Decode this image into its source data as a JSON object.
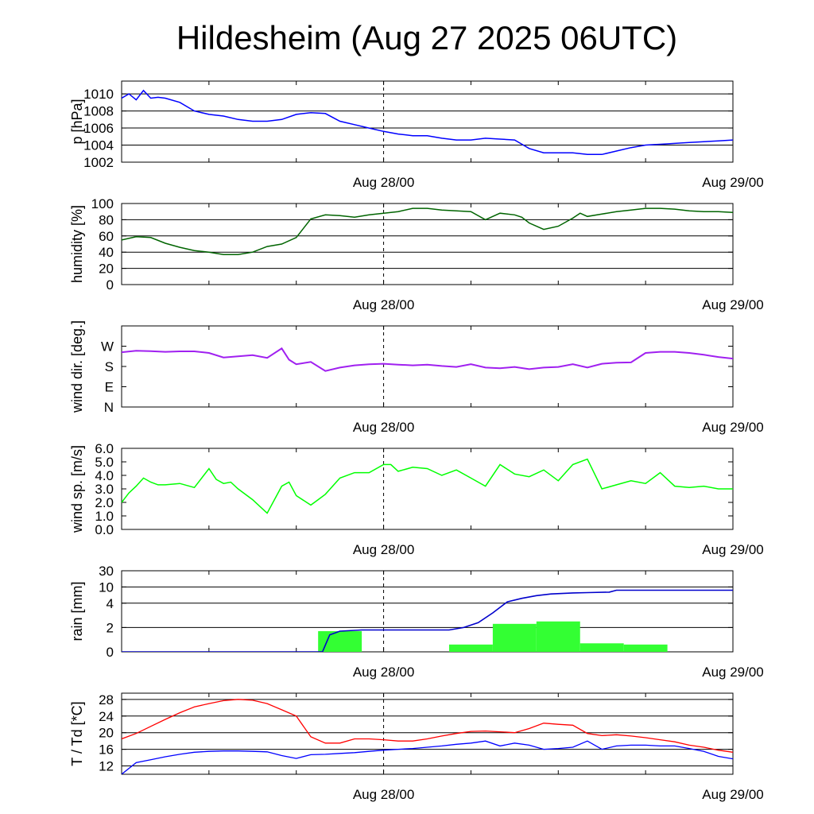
{
  "title": "Hildesheim (Aug 27 2025 06UTC)",
  "time_axis": {
    "start": "Aug 27 06UTC",
    "end": "Aug 29 00UTC",
    "labels": [
      "Aug 28/00",
      "Aug 29/00"
    ]
  },
  "colors": {
    "pressure": "#0000ff",
    "humidity": "#006400",
    "wind_dir": "#a020f0",
    "wind_speed": "#00ff00",
    "rain_bars": "#33ff33",
    "rain_cumulative": "#0000cc",
    "temperature": "#ff0000",
    "dewpoint": "#0000ff"
  },
  "chart_data": [
    {
      "type": "line",
      "ylabel": "p [hPa]",
      "ylim": [
        1002,
        1011.5
      ],
      "yticks": [
        "1002",
        "1004",
        "1006",
        "1008",
        "1010"
      ],
      "grid": true,
      "series": [
        {
          "x": [
            0,
            0.5,
            1,
            1.5,
            2,
            2.5,
            3,
            4,
            5,
            6,
            7,
            8,
            9,
            10,
            11,
            12,
            13,
            14,
            15,
            16,
            17,
            18,
            19,
            20,
            21,
            22,
            23,
            24,
            25,
            26,
            27,
            28,
            29,
            30,
            31,
            32,
            33,
            34,
            35,
            36,
            37,
            38,
            39,
            40,
            41,
            42
          ],
          "y": [
            1009.5,
            1010,
            1009.3,
            1010.4,
            1009.5,
            1009.6,
            1009.5,
            1009.0,
            1008.0,
            1007.6,
            1007.4,
            1007.0,
            1006.8,
            1006.8,
            1007.0,
            1007.6,
            1007.8,
            1007.7,
            1006.8,
            1006.4,
            1006.0,
            1005.6,
            1005.3,
            1005.1,
            1005.1,
            1004.8,
            1004.6,
            1004.6,
            1004.8,
            1004.7,
            1004.6,
            1003.6,
            1003.1,
            1003.1,
            1003.1,
            1002.9,
            1002.9,
            1003.3,
            1003.7,
            1004.0,
            1004.1,
            1004.2,
            1004.3,
            1004.4,
            1004.5,
            1004.6
          ]
        }
      ]
    },
    {
      "type": "line",
      "ylabel": "humidity [%]",
      "ylim": [
        0,
        100
      ],
      "yticks": [
        "0",
        "20",
        "40",
        "60",
        "80",
        "100"
      ],
      "grid": true,
      "series": [
        {
          "x": [
            0,
            1,
            2,
            3,
            4,
            5,
            6,
            7,
            8,
            9,
            10,
            11,
            12,
            13,
            14,
            15,
            16,
            17,
            18,
            19,
            20,
            21,
            22,
            23,
            24,
            25,
            26,
            27,
            27.5,
            28,
            29,
            30,
            31,
            31.5,
            32,
            33,
            34,
            35,
            36,
            37,
            38,
            39,
            40,
            41,
            42
          ],
          "y": [
            55,
            59,
            58,
            51,
            46,
            42,
            40,
            37,
            37,
            40,
            47,
            50,
            58,
            81,
            86,
            85,
            83,
            86,
            88,
            90,
            94,
            94,
            92,
            91,
            90,
            80,
            88,
            86,
            83,
            76,
            68,
            72,
            82,
            88,
            84,
            87,
            90,
            92,
            94,
            94,
            93,
            91,
            90,
            90,
            89
          ]
        }
      ]
    },
    {
      "type": "line",
      "ylabel": "wind dir. [deg.]",
      "ylim": [
        0,
        360
      ],
      "yticks": [
        "N",
        "E",
        "S",
        "W"
      ],
      "grid": false,
      "series": [
        {
          "x": [
            0,
            1,
            2,
            3,
            4,
            5,
            6,
            7,
            8,
            9,
            10,
            11,
            11.5,
            12,
            13,
            14,
            15,
            16,
            17,
            18,
            19,
            20,
            21,
            22,
            23,
            24,
            25,
            26,
            27,
            28,
            29,
            30,
            31,
            32,
            33,
            34,
            35,
            36,
            37,
            38,
            39,
            40,
            41,
            42
          ],
          "y": [
            243,
            250,
            248,
            245,
            247,
            247,
            240,
            220,
            225,
            230,
            218,
            260,
            210,
            190,
            200,
            160,
            175,
            185,
            190,
            192,
            188,
            185,
            188,
            182,
            178,
            190,
            175,
            172,
            178,
            168,
            175,
            178,
            190,
            175,
            192,
            197,
            198,
            240,
            245,
            245,
            240,
            232,
            222,
            215
          ]
        }
      ]
    },
    {
      "type": "line",
      "ylabel": "wind sp. [m/s]",
      "ylim": [
        0,
        6
      ],
      "yticks": [
        "0.0",
        "1.0",
        "2.0",
        "3.0",
        "4.0",
        "5.0",
        "6.0"
      ],
      "grid": false,
      "series": [
        {
          "x": [
            0,
            0.5,
            1,
            1.5,
            2,
            2.5,
            3,
            4,
            5,
            6,
            6.5,
            7,
            7.5,
            8,
            9,
            10,
            11,
            11.5,
            12,
            13,
            13.5,
            14,
            15,
            16,
            17,
            18,
            18.5,
            19,
            20,
            21,
            22,
            23,
            24,
            25,
            26,
            27,
            28,
            29,
            30,
            31,
            32,
            33,
            34,
            35,
            36,
            37,
            38,
            39,
            40,
            41,
            42
          ],
          "y": [
            2.0,
            2.7,
            3.2,
            3.8,
            3.5,
            3.3,
            3.3,
            3.4,
            3.1,
            4.5,
            3.7,
            3.4,
            3.5,
            3.0,
            2.2,
            1.2,
            3.2,
            3.5,
            2.5,
            1.8,
            2.2,
            2.6,
            3.8,
            4.2,
            4.2,
            4.8,
            4.8,
            4.3,
            4.6,
            4.5,
            4.0,
            4.4,
            3.8,
            3.2,
            4.8,
            4.1,
            3.9,
            4.4,
            3.6,
            4.8,
            5.2,
            3.0,
            3.3,
            3.6,
            3.4,
            4.2,
            3.2,
            3.1,
            3.2,
            3.0,
            3.0
          ]
        }
      ]
    },
    {
      "type": "bar",
      "ylabel": "rain [mm]",
      "ylim": [
        0,
        30
      ],
      "yticks": [
        "0",
        "2",
        "4",
        "10",
        "30"
      ],
      "grid": true,
      "bars": [
        {
          "x0": 13.5,
          "x1": 16.5,
          "value": 1.7
        },
        {
          "x0": 22.5,
          "x1": 25.5,
          "value": 0.6
        },
        {
          "x0": 25.5,
          "x1": 28.5,
          "value": 2.3
        },
        {
          "x0": 28.5,
          "x1": 31.5,
          "value": 2.5
        },
        {
          "x0": 31.5,
          "x1": 34.5,
          "value": 0.7
        },
        {
          "x0": 34.5,
          "x1": 37.5,
          "value": 0.6
        }
      ],
      "cumulative": {
        "x": [
          0,
          13.8,
          14.3,
          15,
          16.5,
          20,
          22.5,
          23.5,
          24.5,
          25.5,
          26.5,
          27.5,
          28.5,
          29.5,
          31,
          32,
          33.5,
          34,
          35,
          42
        ],
        "y": [
          0,
          0,
          1.4,
          1.7,
          1.8,
          1.8,
          1.8,
          2.0,
          2.4,
          3.2,
          4.5,
          5.8,
          6.8,
          7.4,
          7.8,
          7.9,
          8.1,
          8.8,
          8.8,
          8.8
        ]
      }
    },
    {
      "type": "line",
      "ylabel": "T / Td [*C]",
      "ylim": [
        10,
        29.5
      ],
      "yticks": [
        "12",
        "16",
        "20",
        "24",
        "28"
      ],
      "grid": true,
      "series": [
        {
          "x": [
            0,
            1,
            2,
            3,
            4,
            5,
            6,
            7,
            8,
            9,
            10,
            11,
            12,
            13,
            14,
            15,
            16,
            17,
            18,
            19,
            20,
            21,
            22,
            23,
            24,
            25,
            26,
            27,
            28,
            29,
            30,
            31,
            32,
            33,
            34,
            35,
            36,
            37,
            38,
            39,
            40,
            41,
            42
          ],
          "y": [
            18.5,
            19.8,
            21.5,
            23.2,
            24.8,
            26.2,
            27.0,
            27.7,
            28.0,
            27.8,
            27.0,
            25.5,
            24.0,
            19.0,
            17.5,
            17.5,
            18.5,
            18.5,
            18.3,
            18.0,
            18.0,
            18.5,
            19.2,
            19.8,
            20.3,
            20.4,
            20.2,
            20.0,
            21.0,
            22.3,
            22.0,
            21.8,
            19.8,
            19.3,
            19.5,
            19.2,
            18.8,
            18.3,
            17.8,
            17.0,
            16.5,
            15.8,
            15.3
          ]
        },
        {
          "x": [
            0,
            1,
            2,
            3,
            4,
            5,
            6,
            7,
            8,
            9,
            10,
            11,
            12,
            13,
            14,
            15,
            16,
            17,
            18,
            19,
            20,
            21,
            22,
            23,
            24,
            25,
            26,
            27,
            28,
            29,
            30,
            31,
            32,
            33,
            34,
            35,
            36,
            37,
            38,
            39,
            40,
            41,
            42
          ],
          "y": [
            10.0,
            12.8,
            13.5,
            14.2,
            14.8,
            15.3,
            15.5,
            15.6,
            15.6,
            15.5,
            15.4,
            14.5,
            13.8,
            14.7,
            14.8,
            15.0,
            15.2,
            15.5,
            15.8,
            16.0,
            16.2,
            16.5,
            16.8,
            17.2,
            17.5,
            18.0,
            16.8,
            17.5,
            17.0,
            16.0,
            16.2,
            16.5,
            18.0,
            16.0,
            16.8,
            17.0,
            17.0,
            16.8,
            16.8,
            16.2,
            15.5,
            14.3,
            13.7
          ]
        }
      ]
    }
  ]
}
